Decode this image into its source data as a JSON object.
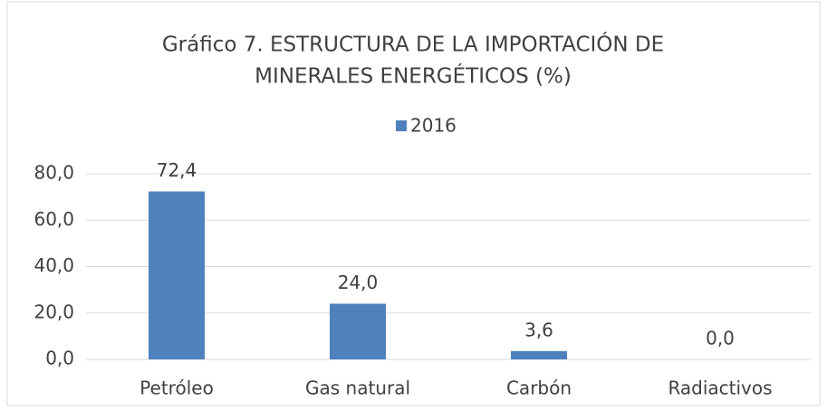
{
  "chart_data": {
    "type": "bar",
    "title": [
      "Gráfico 7.  ESTRUCTURA DE LA IMPORTACIÓN DE",
      "MINERALES ENERGÉTICOS (%)"
    ],
    "categories": [
      "Petróleo",
      "Gas natural",
      "Carbón",
      "Radiactivos"
    ],
    "series": [
      {
        "name": "2016",
        "color": "#4f81bd",
        "values": [
          72.4,
          24.0,
          3.6,
          0.0
        ],
        "value_labels": [
          "72,4",
          "24,0",
          "3,6",
          "0,0"
        ]
      }
    ],
    "ylim": [
      0,
      80
    ],
    "yticks": [
      {
        "value": 0,
        "label": "0,0"
      },
      {
        "value": 20,
        "label": "20,0"
      },
      {
        "value": 40,
        "label": "40,0"
      },
      {
        "value": 60,
        "label": "60,0"
      },
      {
        "value": 80,
        "label": "80,0"
      }
    ],
    "grid": true,
    "legend": "top"
  }
}
